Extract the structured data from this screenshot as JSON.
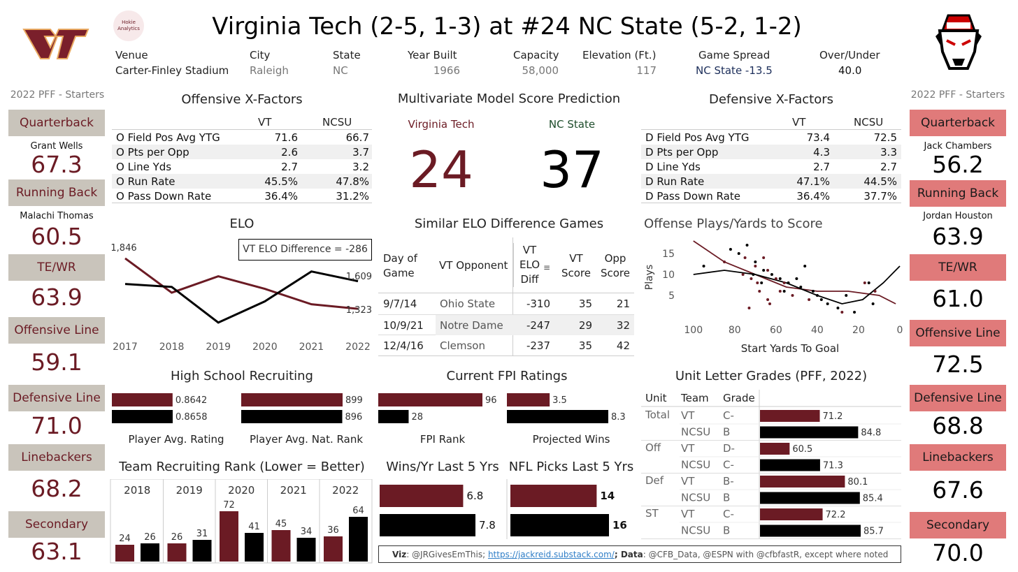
{
  "title": "Virginia Tech (2-5, 1-3) at #24 NC State (5-2, 1-2)",
  "hokie_logo_text": "Hokie Analytics",
  "header": {
    "venue": {
      "label": "Venue",
      "value": "Carter-Finley Stadium"
    },
    "city": {
      "label": "City",
      "value": "Raleigh"
    },
    "state": {
      "label": "State",
      "value": "NC"
    },
    "year_built": {
      "label": "Year Built",
      "value": "1966"
    },
    "capacity": {
      "label": "Capacity",
      "value": "58,000"
    },
    "elevation": {
      "label": "Elevation (Ft.)",
      "value": "117"
    },
    "spread": {
      "label": "Game Spread",
      "value": "NC State -13.5"
    },
    "over_under": {
      "label": "Over/Under",
      "value": "40.0"
    }
  },
  "left": {
    "heading": "2022 PFF - Starters",
    "positions": [
      {
        "pos": "Quarterback",
        "name": "Grant Wells",
        "grade": "67.3"
      },
      {
        "pos": "Running Back",
        "name": "Malachi Thomas",
        "grade": "60.5"
      },
      {
        "pos": "TE/WR",
        "name": "",
        "grade": "63.9"
      },
      {
        "pos": "Offensive Line",
        "name": "",
        "grade": "59.1"
      },
      {
        "pos": "Defensive Line",
        "name": "",
        "grade": "71.0"
      },
      {
        "pos": "Linebackers",
        "name": "",
        "grade": "68.2"
      },
      {
        "pos": "Secondary",
        "name": "",
        "grade": "63.1"
      }
    ]
  },
  "right": {
    "heading": "2022 PFF - Starters",
    "positions": [
      {
        "pos": "Quarterback",
        "name": "Jack Chambers",
        "grade": "56.2"
      },
      {
        "pos": "Running Back",
        "name": "Jordan Houston",
        "grade": "63.9"
      },
      {
        "pos": "TE/WR",
        "name": "",
        "grade": "61.0"
      },
      {
        "pos": "Offensive Line",
        "name": "",
        "grade": "72.5"
      },
      {
        "pos": "Defensive Line",
        "name": "",
        "grade": "68.8"
      },
      {
        "pos": "Linebackers",
        "name": "",
        "grade": "67.6"
      },
      {
        "pos": "Secondary",
        "name": "",
        "grade": "70.0"
      }
    ]
  },
  "offense": {
    "title": "Offensive X-Factors",
    "col_vt": "VT",
    "col_nc": "NCSU",
    "rows": [
      {
        "label": "O Field Pos Avg YTG",
        "vt": "71.6",
        "nc": "66.7"
      },
      {
        "label": "O Pts per Opp",
        "vt": "2.6",
        "nc": "3.7"
      },
      {
        "label": "O Line Yds",
        "vt": "2.7",
        "nc": "3.2"
      },
      {
        "label": "O Run Rate",
        "vt": "45.5%",
        "nc": "47.8%"
      },
      {
        "label": "O Pass Down Rate",
        "vt": "36.4%",
        "nc": "31.2%"
      }
    ]
  },
  "defense": {
    "title": "Defensive X-Factors",
    "col_vt": "VT",
    "col_nc": "NCSU",
    "rows": [
      {
        "label": "D Field Pos Avg YTG",
        "vt": "73.4",
        "nc": "72.5"
      },
      {
        "label": "D Pts per Opp",
        "vt": "4.3",
        "nc": "3.3"
      },
      {
        "label": "D Line Yds",
        "vt": "2.7",
        "nc": "2.7"
      },
      {
        "label": "D Run Rate",
        "vt": "47.1%",
        "nc": "44.5%"
      },
      {
        "label": "D Pass Down Rate",
        "vt": "36.4%",
        "nc": "37.7%"
      }
    ]
  },
  "model": {
    "title": "Multivariate Model Score Prediction",
    "vt_label": "Virginia Tech",
    "nc_label": "NC State",
    "vt_score": "24",
    "nc_score": "37"
  },
  "similar": {
    "title": "Similar ELO Difference Games",
    "headers": [
      "Day of Game",
      "VT Opponent",
      "VT ELO Diff",
      "VT Score",
      "Opp Score"
    ],
    "rows": [
      [
        "9/7/14",
        "Ohio State",
        "-310",
        "35",
        "21"
      ],
      [
        "10/9/21",
        "Notre Dame",
        "-247",
        "29",
        "32"
      ],
      [
        "12/4/16",
        "Clemson",
        "-237",
        "35",
        "42"
      ]
    ]
  },
  "colors": {
    "vt": "#6b1b24",
    "nc": "#000000",
    "vt_box": "#c9c4bb",
    "nc_box": "#e07a7a"
  },
  "elo_difference_text": "VT ELO Difference = -286",
  "recruiting_captions": {
    "rating": "Player Avg. Rating",
    "rank": "Player Avg. Nat. Rank",
    "fpi_rank": "FPI Rank",
    "proj_wins": "Projected Wins"
  },
  "footer": {
    "viz_label": "Viz",
    "viz": ": @JRGivesEmThis; ",
    "link": "https://jackreid.substack.com/",
    "data_label": "; Data",
    "data": ": @CFB_Data, @ESPN with @cfbfastR, except where noted"
  },
  "chart_data": [
    {
      "type": "line",
      "title": "ELO",
      "x": [
        2017,
        2018,
        2019,
        2020,
        2021,
        2022
      ],
      "series": [
        {
          "color": "#6b1b24",
          "values": [
            1846,
            1490,
            1660,
            1530,
            1370,
            1323
          ]
        },
        {
          "color": "#000000",
          "values": [
            1580,
            1550,
            1180,
            1400,
            1710,
            1609
          ]
        }
      ],
      "point_labels": [
        "1,846",
        "1,609",
        "1,323"
      ]
    },
    {
      "type": "scatter",
      "title": "Offense Plays/Yards to Score",
      "xlabel": "Start Yards To Goal",
      "ylabel": "Plays",
      "xlim": [
        105,
        0
      ],
      "ylim": [
        0,
        18
      ],
      "xticks": [
        100,
        80,
        60,
        40,
        20,
        0
      ],
      "yticks": [
        5,
        10,
        15
      ],
      "series": [
        {
          "color": "#6b1b24",
          "points": [
            [
              85,
              13
            ],
            [
              75,
              14
            ],
            [
              70,
              12
            ],
            [
              66,
              14
            ],
            [
              72,
              9
            ],
            [
              69,
              8
            ],
            [
              64,
              11
            ],
            [
              58,
              6
            ],
            [
              56,
              8
            ],
            [
              73,
              2
            ],
            [
              63,
              3
            ],
            [
              68,
              6
            ],
            [
              52,
              5
            ],
            [
              44,
              4
            ],
            [
              28,
              1
            ],
            [
              17,
              8
            ],
            [
              12,
              6
            ],
            [
              64,
              4
            ],
            [
              60,
              9
            ],
            [
              76,
              10
            ]
          ]
        },
        {
          "color": "#000000",
          "points": [
            [
              95,
              12
            ],
            [
              82,
              16
            ],
            [
              78,
              15
            ],
            [
              74,
              17
            ],
            [
              70,
              13
            ],
            [
              66,
              11
            ],
            [
              62,
              10
            ],
            [
              58,
              9
            ],
            [
              54,
              8
            ],
            [
              50,
              9
            ],
            [
              46,
              12
            ],
            [
              42,
              6
            ],
            [
              38,
              4
            ],
            [
              35,
              3
            ],
            [
              30,
              2
            ],
            [
              26,
              5
            ],
            [
              22,
              1
            ],
            [
              15,
              8
            ],
            [
              13,
              3
            ],
            [
              48,
              7
            ],
            [
              71,
              10
            ],
            [
              67,
              8
            ],
            [
              56,
              6
            ],
            [
              40,
              5
            ]
          ]
        }
      ]
    },
    {
      "type": "bar",
      "title": "High School Recruiting",
      "groups": [
        {
          "caption": "Player Avg. Rating",
          "series": [
            {
              "color": "#6b1b24",
              "value": 0.8642,
              "label": "0.8642"
            },
            {
              "color": "#000000",
              "value": 0.8658,
              "label": "0.8658"
            }
          ]
        },
        {
          "caption": "Player Avg. Nat. Rank",
          "series": [
            {
              "color": "#6b1b24",
              "value": 899,
              "label": "899"
            },
            {
              "color": "#000000",
              "value": 896,
              "label": "896"
            }
          ]
        }
      ]
    },
    {
      "type": "bar",
      "title": "Current FPI Ratings",
      "groups": [
        {
          "caption": "FPI Rank",
          "series": [
            {
              "color": "#6b1b24",
              "value": 96,
              "label": "96"
            },
            {
              "color": "#000000",
              "value": 28,
              "label": "28"
            }
          ]
        },
        {
          "caption": "Projected Wins",
          "series": [
            {
              "color": "#6b1b24",
              "value": 3.5,
              "label": "3.5"
            },
            {
              "color": "#000000",
              "value": 8.3,
              "label": "8.3"
            }
          ]
        }
      ]
    },
    {
      "type": "bar",
      "title": "Team Recruiting Rank (Lower = Better)",
      "categories": [
        "2018",
        "2019",
        "2020",
        "2021",
        "2022"
      ],
      "series": [
        {
          "color": "#6b1b24",
          "values": [
            24,
            26,
            72,
            45,
            36
          ]
        },
        {
          "color": "#000000",
          "values": [
            26,
            31,
            41,
            34,
            64
          ]
        }
      ]
    },
    {
      "type": "bar",
      "title": "Wins/Yr Last 5 Yrs",
      "series": [
        {
          "color": "#6b1b24",
          "value": 6.8,
          "label": "6.8"
        },
        {
          "color": "#000000",
          "value": 7.8,
          "label": "7.8"
        }
      ]
    },
    {
      "type": "bar",
      "title": "NFL Picks Last 5 Yrs",
      "series": [
        {
          "color": "#6b1b24",
          "value": 14,
          "label": "14"
        },
        {
          "color": "#000000",
          "value": 16,
          "label": "16"
        }
      ]
    },
    {
      "type": "bar",
      "title": "Unit Letter Grades (PFF, 2022)",
      "headers": [
        "Unit",
        "Team",
        "Grade"
      ],
      "rows": [
        {
          "unit": "Total",
          "team": "VT",
          "grade": "C-",
          "value": 71.2,
          "color": "#6b1b24"
        },
        {
          "unit": "",
          "team": "NCSU",
          "grade": "B",
          "value": 84.8,
          "color": "#000000"
        },
        {
          "unit": "Off",
          "team": "VT",
          "grade": "D-",
          "value": 60.5,
          "color": "#6b1b24"
        },
        {
          "unit": "",
          "team": "NCSU",
          "grade": "C-",
          "value": 71.3,
          "color": "#000000"
        },
        {
          "unit": "Def",
          "team": "VT",
          "grade": "B-",
          "value": 80.1,
          "color": "#6b1b24"
        },
        {
          "unit": "",
          "team": "NCSU",
          "grade": "B",
          "value": 85.4,
          "color": "#000000"
        },
        {
          "unit": "ST",
          "team": "VT",
          "grade": "C-",
          "value": 72.2,
          "color": "#6b1b24"
        },
        {
          "unit": "",
          "team": "NCSU",
          "grade": "B",
          "value": 85.7,
          "color": "#000000"
        }
      ]
    }
  ]
}
